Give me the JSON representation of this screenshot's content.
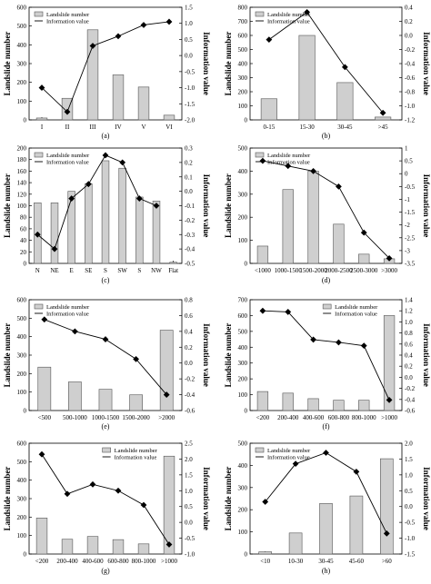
{
  "chart_data": [
    {
      "type": "bar",
      "panel_label": "(a)",
      "categories": [
        "I",
        "II",
        "III",
        "IV",
        "V",
        "VI"
      ],
      "series": [
        {
          "name": "Landslide number",
          "type": "bar",
          "axis": "left",
          "values": [
            10,
            115,
            480,
            240,
            175,
            25
          ]
        },
        {
          "name": "Information value",
          "type": "line",
          "axis": "right",
          "values": [
            -1.0,
            -1.75,
            0.3,
            0.6,
            0.95,
            1.05
          ]
        }
      ],
      "ylabel": "Landslide number",
      "y2label": "Information value",
      "ylim": [
        0,
        600
      ],
      "yticks": [
        0,
        100,
        200,
        300,
        400,
        500,
        600
      ],
      "y2lim": [
        -2.0,
        1.5
      ],
      "y2ticks": [
        "-2.0",
        "-1.5",
        "-1.0",
        "-0.5",
        "0.0",
        "0.5",
        "1.0",
        "1.5"
      ],
      "legend": "top-left"
    },
    {
      "type": "bar",
      "panel_label": "(b)",
      "categories": [
        "0-15",
        "15-30",
        "30-45",
        ">45"
      ],
      "series": [
        {
          "name": "Landslide number",
          "type": "bar",
          "axis": "left",
          "values": [
            150,
            600,
            265,
            20
          ]
        },
        {
          "name": "Information value",
          "type": "line",
          "axis": "right",
          "values": [
            -0.06,
            0.33,
            -0.45,
            -1.1
          ]
        }
      ],
      "ylabel": "Landslide number",
      "y2label": "Information value",
      "ylim": [
        0,
        800
      ],
      "yticks": [
        0,
        100,
        200,
        300,
        400,
        500,
        600,
        700,
        800
      ],
      "y2lim": [
        -1.2,
        0.4
      ],
      "y2ticks": [
        "-1.2",
        "-1.0",
        "-0.8",
        "-0.6",
        "-0.4",
        "-0.2",
        "0.0",
        "0.2",
        "0.4"
      ],
      "legend": "top-left"
    },
    {
      "type": "bar",
      "panel_label": "(c)",
      "categories": [
        "N",
        "NE",
        "E",
        "SE",
        "S",
        "SW",
        "S",
        "NW",
        "Flat"
      ],
      "series": [
        {
          "name": "Landslide number",
          "type": "bar",
          "axis": "left",
          "values": [
            105,
            105,
            125,
            138,
            178,
            165,
            115,
            108,
            2
          ]
        },
        {
          "name": "Information value",
          "type": "line",
          "axis": "right",
          "values": [
            -0.3,
            -0.4,
            -0.05,
            0.05,
            0.25,
            0.2,
            -0.05,
            -0.1,
            null
          ]
        }
      ],
      "ylabel": "Landslide number",
      "y2label": "Information value",
      "ylim": [
        0,
        200
      ],
      "yticks": [
        0,
        20,
        40,
        60,
        80,
        100,
        120,
        140,
        160,
        180,
        200
      ],
      "y2lim": [
        -0.5,
        0.3
      ],
      "y2ticks": [
        "-0.5",
        "-0.4",
        "-0.3",
        "-0.2",
        "-0.1",
        "0.0",
        "0.1",
        "0.2",
        "0.3"
      ],
      "legend": "top-left"
    },
    {
      "type": "bar",
      "panel_label": "(d)",
      "categories": [
        "<1000",
        "1000-1500",
        "1500-2000",
        "2000-2500",
        "2500-3000",
        ">3000"
      ],
      "series": [
        {
          "name": "Landslide number",
          "type": "bar",
          "axis": "left",
          "values": [
            75,
            320,
            400,
            170,
            40,
            20
          ]
        },
        {
          "name": "Information value",
          "type": "line",
          "axis": "right",
          "values": [
            0.5,
            0.3,
            0.1,
            -0.5,
            -2.3,
            -3.3
          ]
        }
      ],
      "ylabel": "Landslide number",
      "y2label": "Information value",
      "ylim": [
        0,
        500
      ],
      "yticks": [
        0,
        100,
        200,
        300,
        400,
        500
      ],
      "y2lim": [
        -3.5,
        1.0
      ],
      "y2ticks": [
        "-3.5",
        "-3",
        "-2.5",
        "-2",
        "-1.5",
        "-1",
        "-0.5",
        "0",
        "0.5",
        "1"
      ],
      "legend": "top-left"
    },
    {
      "type": "bar",
      "panel_label": "(e)",
      "categories": [
        "<500",
        "500-1000",
        "1000-1500",
        "1500-2000",
        ">2000"
      ],
      "series": [
        {
          "name": "Landslide number",
          "type": "bar",
          "axis": "left",
          "values": [
            235,
            155,
            115,
            85,
            435
          ]
        },
        {
          "name": "Information value",
          "type": "line",
          "axis": "right",
          "values": [
            0.55,
            0.4,
            0.3,
            0.05,
            -0.4
          ]
        }
      ],
      "ylabel": "Landslide number",
      "y2label": "Information value",
      "ylim": [
        0,
        600
      ],
      "yticks": [
        0,
        100,
        200,
        300,
        400,
        500,
        600
      ],
      "y2lim": [
        -0.6,
        0.8
      ],
      "y2ticks": [
        "-0.6",
        "-0.4",
        "-0.2",
        "0.0",
        "0.2",
        "0.4",
        "0.6",
        "0.8"
      ],
      "legend": "top-left"
    },
    {
      "type": "bar",
      "panel_label": "(f)",
      "categories": [
        "<200",
        "200-400",
        "400-600",
        "600-800",
        "800-1000",
        ">1000"
      ],
      "series": [
        {
          "name": "Landslide number",
          "type": "bar",
          "axis": "left",
          "values": [
            120,
            110,
            75,
            65,
            65,
            600
          ]
        },
        {
          "name": "Information value",
          "type": "line",
          "axis": "right",
          "values": [
            1.2,
            1.18,
            0.68,
            0.63,
            0.57,
            -0.41
          ]
        }
      ],
      "ylabel": "Landslide number",
      "y2label": "Information value",
      "ylim": [
        0,
        700
      ],
      "yticks": [
        0,
        100,
        200,
        300,
        400,
        500,
        600,
        700
      ],
      "y2lim": [
        -0.6,
        1.4
      ],
      "y2ticks": [
        "-0.6",
        "-0.4",
        "-0.2",
        "0.0",
        "0.2",
        "0.4",
        "0.6",
        "0.8",
        "1.0",
        "1.2",
        "1.4"
      ],
      "legend": "top-right"
    },
    {
      "type": "bar",
      "panel_label": "(g)",
      "categories": [
        "<200",
        "200-400",
        "400-600",
        "600-800",
        "800-1000",
        ">1000"
      ],
      "series": [
        {
          "name": "Landslide number",
          "type": "bar",
          "axis": "left",
          "values": [
            195,
            80,
            95,
            78,
            55,
            530
          ]
        },
        {
          "name": "Information value",
          "type": "line",
          "axis": "right",
          "values": [
            2.15,
            0.9,
            1.2,
            1.0,
            0.55,
            -0.7
          ]
        }
      ],
      "ylabel": "Landslide number",
      "y2label": "Information value",
      "ylim": [
        0,
        600
      ],
      "yticks": [
        0,
        100,
        200,
        300,
        400,
        500,
        600
      ],
      "y2lim": [
        -1.0,
        2.5
      ],
      "y2ticks": [
        "-1.0",
        "-0.5",
        "0.0",
        "0.5",
        "1.0",
        "1.5",
        "2.0",
        "2.5"
      ],
      "legend": "top-right"
    },
    {
      "type": "bar",
      "panel_label": "(h)",
      "categories": [
        "<10",
        "10-30",
        "30-45",
        "45-60",
        ">60"
      ],
      "series": [
        {
          "name": "Landslide number",
          "type": "bar",
          "axis": "left",
          "values": [
            10,
            95,
            228,
            262,
            430
          ]
        },
        {
          "name": "Information value",
          "type": "line",
          "axis": "right",
          "values": [
            0.15,
            1.35,
            1.7,
            1.1,
            -0.85
          ]
        }
      ],
      "ylabel": "Landslide number",
      "y2label": "Information value",
      "ylim": [
        0,
        500
      ],
      "yticks": [
        0,
        100,
        200,
        300,
        400,
        500
      ],
      "y2lim": [
        -1.5,
        2.0
      ],
      "y2ticks": [
        "-1.5",
        "-1.0",
        "-0.5",
        "0.0",
        "0.5",
        "1.0",
        "1.5",
        "2.0"
      ],
      "legend": "top-left"
    }
  ]
}
